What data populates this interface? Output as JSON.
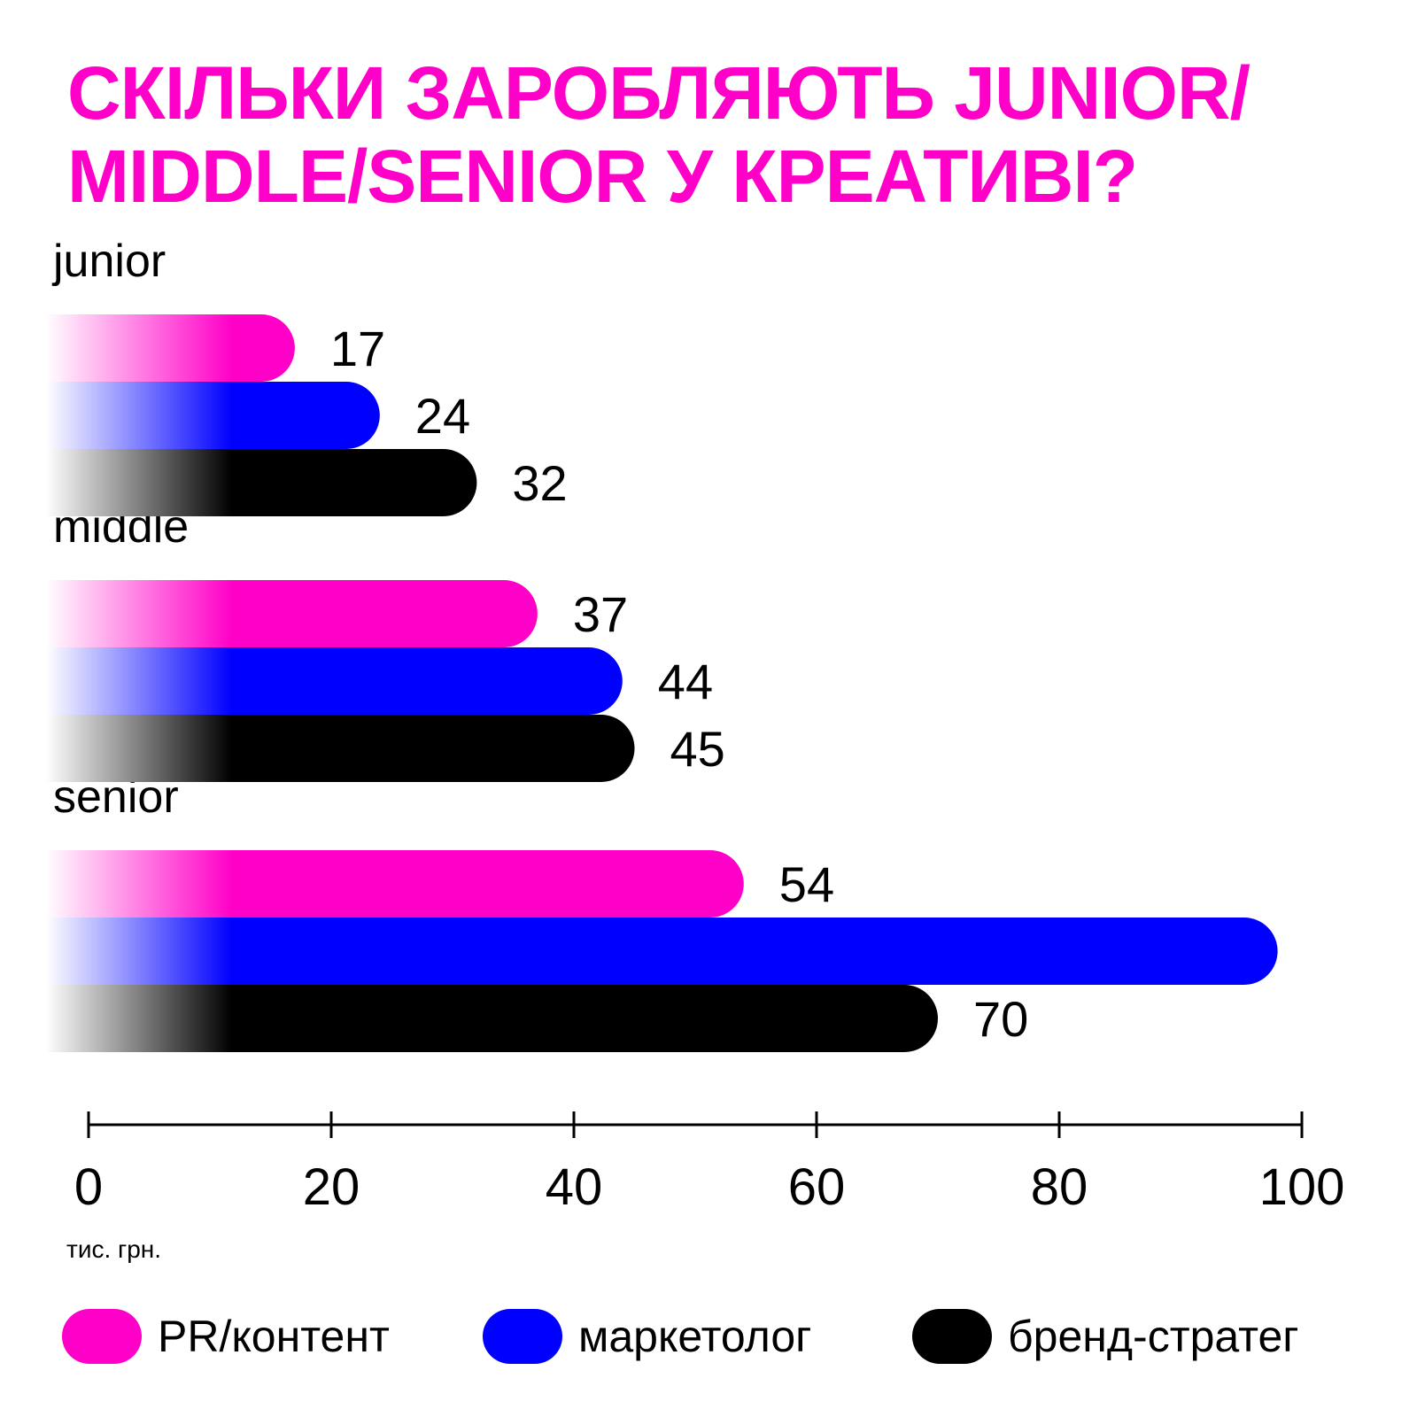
{
  "chart_data": {
    "type": "bar",
    "orientation": "horizontal",
    "title": "СКІЛЬКИ ЗАРОБЛЯЮТЬ JUNIOR/ MIDDLE/SENIOR У КРЕАТИВІ?",
    "categories": [
      "junior",
      "middle",
      "senior"
    ],
    "series": [
      {
        "name": "PR/контент",
        "color": "#ff00c8",
        "values": [
          17,
          37,
          54
        ],
        "labels": [
          "17",
          "37",
          "54"
        ]
      },
      {
        "name": "маркетолог",
        "color": "#0000ff",
        "values": [
          24,
          44,
          98
        ],
        "labels": [
          "24",
          "44",
          ""
        ]
      },
      {
        "name": "бренд-стратег",
        "color": "#000000",
        "values": [
          32,
          45,
          70
        ],
        "labels": [
          "32",
          "45",
          "70"
        ]
      }
    ],
    "xlim": [
      0,
      100
    ],
    "xticks": [
      "0",
      "20",
      "40",
      "60",
      "80",
      "100"
    ],
    "xlabel": "тис. грн.",
    "legend": "bottom"
  }
}
